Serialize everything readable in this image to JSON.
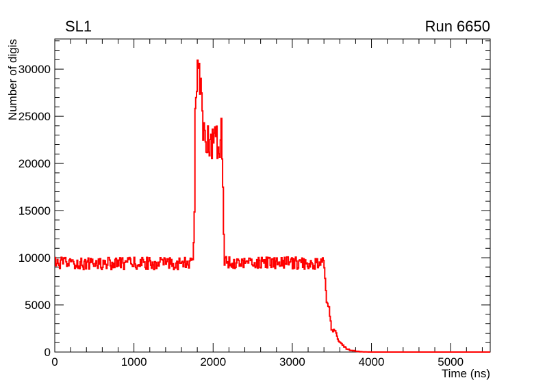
{
  "chart_data": {
    "type": "line",
    "title_left": "SL1",
    "title_right": "Run 6650",
    "xlabel": "Time (ns)",
    "ylabel": "Number of digis",
    "xlim": [
      0,
      5500
    ],
    "ylim": [
      0,
      33200
    ],
    "x_tick_major": [
      0,
      1000,
      2000,
      3000,
      4000,
      5000
    ],
    "x_tick_labels": [
      "0",
      "1000",
      "2000",
      "3000",
      "4000",
      "5000"
    ],
    "x_minor_step": 200,
    "x_major_step": 1000,
    "y_tick_major": [
      0,
      5000,
      10000,
      15000,
      20000,
      25000,
      30000
    ],
    "y_tick_labels": [
      "0",
      "5000",
      "10000",
      "15000",
      "20000",
      "25000",
      "30000"
    ],
    "y_minor_step": 1000,
    "y_major_step": 5000,
    "grid": false,
    "legend": "none",
    "line_color": "#ff0000",
    "axis_color": "#000000",
    "background_color": "#ffffff",
    "bin_width": 10,
    "seed": 12345,
    "series": [
      {
        "name": "Number of digis vs Time",
        "style": "histogram-step",
        "baseline_level": 9400,
        "baseline_noise": 650,
        "peak_value": 32500,
        "peak_time": 1810,
        "plateau_level": 22800,
        "plateau_range": [
          1760,
          2120
        ],
        "dropoff_start": 3400,
        "zero_after": 4000,
        "breakpoints": [
          [
            0,
            9400,
            650
          ],
          [
            1750,
            9400,
            650
          ],
          [
            1762,
            14000,
            2500
          ],
          [
            1778,
            27500,
            1500
          ],
          [
            1795,
            29500,
            2800
          ],
          [
            1812,
            31600,
            900
          ],
          [
            1828,
            29500,
            2600
          ],
          [
            1848,
            26500,
            2300
          ],
          [
            1868,
            22900,
            2400
          ],
          [
            2085,
            22800,
            2400
          ],
          [
            2103,
            24900,
            1200
          ],
          [
            2118,
            21500,
            2200
          ],
          [
            2132,
            12000,
            1200
          ],
          [
            2148,
            9500,
            650
          ],
          [
            3395,
            9400,
            650
          ],
          [
            3412,
            8500,
            600
          ],
          [
            3432,
            5100,
            350
          ],
          [
            3468,
            4500,
            300
          ],
          [
            3492,
            2600,
            280
          ],
          [
            3545,
            2050,
            250
          ],
          [
            3588,
            1250,
            180
          ],
          [
            3635,
            750,
            130
          ],
          [
            3685,
            400,
            90
          ],
          [
            3738,
            190,
            60
          ],
          [
            3800,
            90,
            40
          ],
          [
            3868,
            30,
            18
          ],
          [
            3940,
            8,
            6
          ],
          [
            4010,
            0,
            0
          ],
          [
            5500,
            0,
            0
          ]
        ]
      }
    ]
  }
}
